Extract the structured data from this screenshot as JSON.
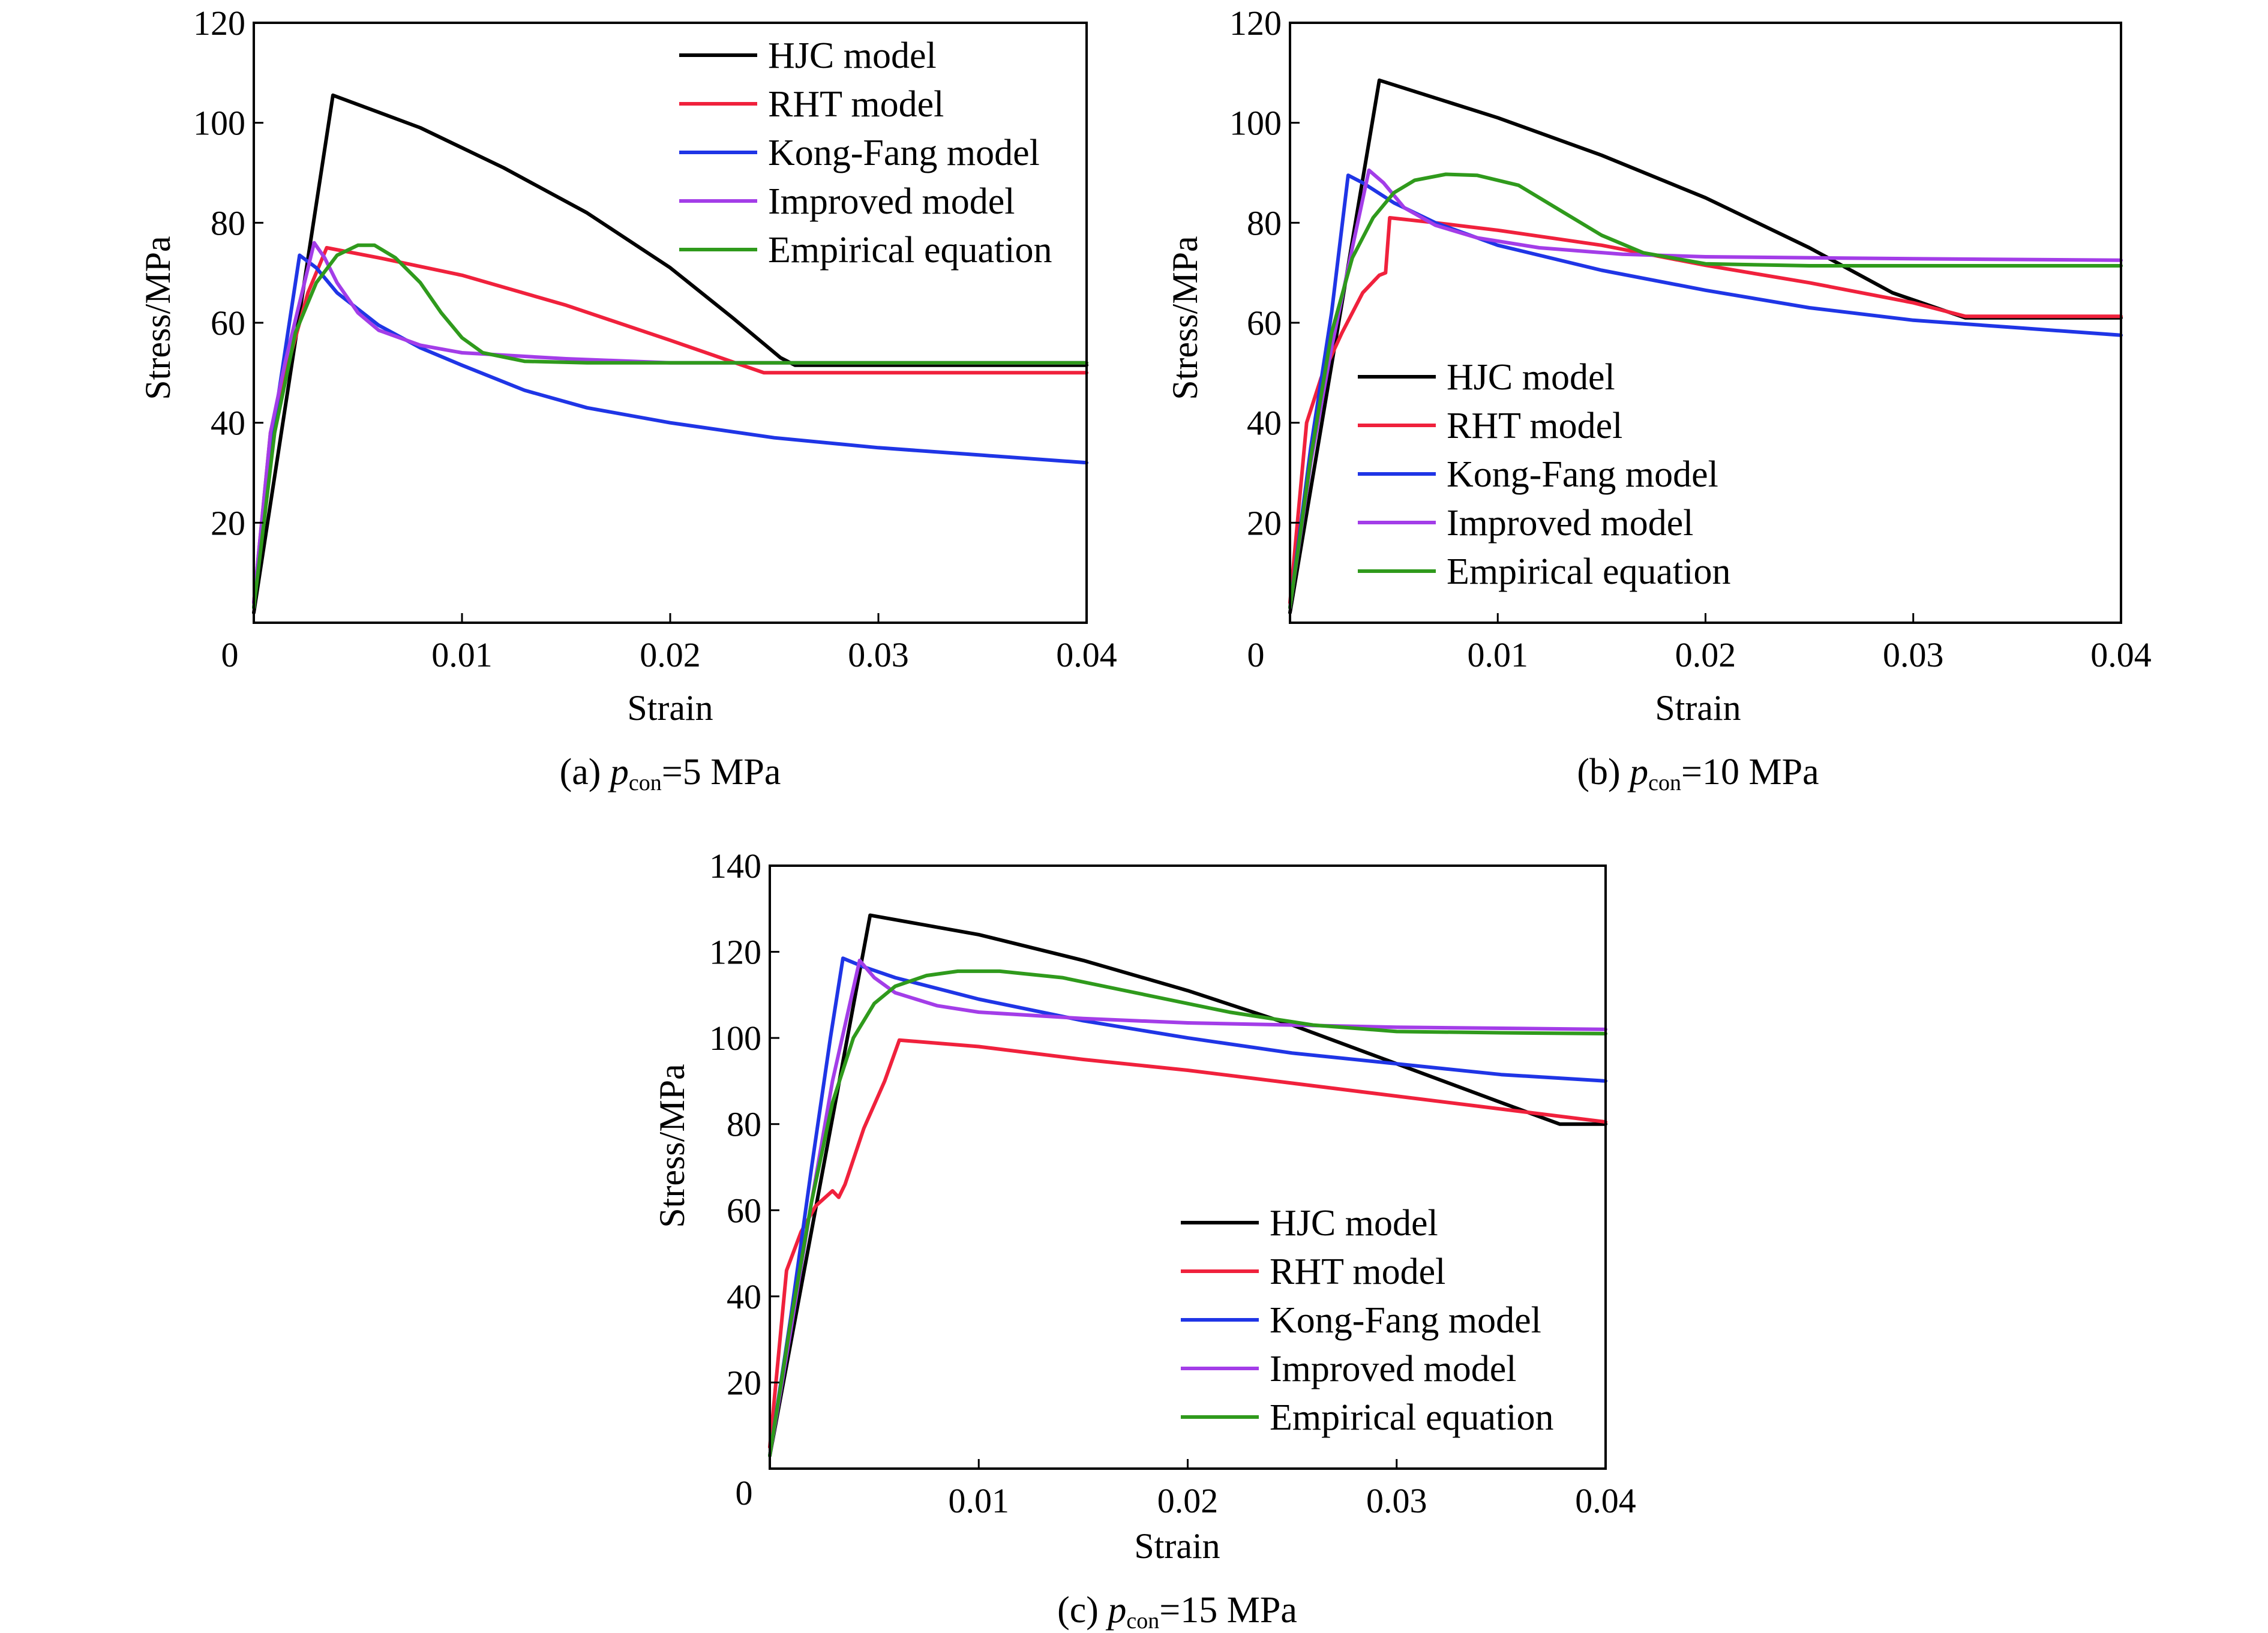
{
  "figure": {
    "panels": [
      {
        "caption": {
          "prefix": "(a) ",
          "symbol": "p",
          "subscript": "con",
          "suffix": "=5 MPa"
        }
      },
      {
        "caption": {
          "prefix": "(b) ",
          "symbol": "p",
          "subscript": "con",
          "suffix": "=10 MPa"
        }
      },
      {
        "caption": {
          "prefix": "(c) ",
          "symbol": "p",
          "subscript": "con",
          "suffix": "=15 MPa"
        }
      }
    ]
  },
  "chart_data": [
    {
      "type": "line",
      "xlabel": "Strain",
      "ylabel": "Stress/MPa",
      "xlim": [
        0,
        0.04
      ],
      "ylim": [
        0,
        120
      ],
      "xticks": [
        0,
        0.01,
        0.02,
        0.03,
        0.04
      ],
      "xtick_labels": [
        "0",
        "0.01",
        "0.02",
        "0.03",
        "0.04"
      ],
      "yticks": [
        20,
        40,
        60,
        80,
        100,
        120
      ],
      "ytick_labels": [
        "20",
        "40",
        "60",
        "80",
        "100",
        "120"
      ],
      "zero_label": "0",
      "grid": false,
      "legend_position": "top-right",
      "series": [
        {
          "name": "HJC model",
          "color": "#000000",
          "points": [
            [
              0,
              2
            ],
            [
              0.0038,
              105.5
            ],
            [
              0.008,
              99
            ],
            [
              0.012,
              91
            ],
            [
              0.016,
              82
            ],
            [
              0.02,
              71
            ],
            [
              0.023,
              61
            ],
            [
              0.0253,
              53
            ],
            [
              0.026,
              51.5
            ],
            [
              0.04,
              51.5
            ]
          ]
        },
        {
          "name": "RHT model",
          "color": "#f0213c",
          "points": [
            [
              0,
              4
            ],
            [
              0.0008,
              38
            ],
            [
              0.0014,
              48
            ],
            [
              0.002,
              57
            ],
            [
              0.0026,
              66
            ],
            [
              0.0035,
              75
            ],
            [
              0.006,
              73
            ],
            [
              0.01,
              69.5
            ],
            [
              0.015,
              63.5
            ],
            [
              0.02,
              56.5
            ],
            [
              0.0245,
              50
            ],
            [
              0.04,
              50
            ]
          ]
        },
        {
          "name": "Kong-Fang model",
          "color": "#1f35e6",
          "points": [
            [
              0,
              3
            ],
            [
              0.0008,
              35
            ],
            [
              0.0016,
              57
            ],
            [
              0.0022,
              73.5
            ],
            [
              0.003,
              71
            ],
            [
              0.004,
              66
            ],
            [
              0.006,
              59.5
            ],
            [
              0.008,
              55
            ],
            [
              0.01,
              51.5
            ],
            [
              0.013,
              46.5
            ],
            [
              0.016,
              43
            ],
            [
              0.02,
              40
            ],
            [
              0.025,
              37
            ],
            [
              0.03,
              35
            ],
            [
              0.035,
              33.5
            ],
            [
              0.04,
              32
            ]
          ]
        },
        {
          "name": "Improved model",
          "color": "#a33de8",
          "points": [
            [
              0,
              4
            ],
            [
              0.0008,
              38
            ],
            [
              0.0015,
              52
            ],
            [
              0.0022,
              64
            ],
            [
              0.0029,
              76
            ],
            [
              0.0034,
              73
            ],
            [
              0.004,
              68
            ],
            [
              0.005,
              62
            ],
            [
              0.006,
              58.5
            ],
            [
              0.008,
              55.5
            ],
            [
              0.01,
              54
            ],
            [
              0.015,
              52.8
            ],
            [
              0.02,
              52
            ],
            [
              0.04,
              52
            ]
          ]
        },
        {
          "name": "Empirical equation",
          "color": "#2f9a1c",
          "points": [
            [
              0,
              3
            ],
            [
              0.001,
              38
            ],
            [
              0.002,
              58
            ],
            [
              0.003,
              68
            ],
            [
              0.004,
              73.5
            ],
            [
              0.005,
              75.5
            ],
            [
              0.0058,
              75.5
            ],
            [
              0.0068,
              73
            ],
            [
              0.008,
              68
            ],
            [
              0.009,
              62
            ],
            [
              0.01,
              57
            ],
            [
              0.011,
              54
            ],
            [
              0.013,
              52.3
            ],
            [
              0.016,
              52
            ],
            [
              0.04,
              52
            ]
          ]
        }
      ]
    },
    {
      "type": "line",
      "xlabel": "Strain",
      "ylabel": "Stress/MPa",
      "xlim": [
        0,
        0.04
      ],
      "ylim": [
        0,
        120
      ],
      "xticks": [
        0,
        0.01,
        0.02,
        0.03,
        0.04
      ],
      "xtick_labels": [
        "0",
        "0.01",
        "0.02",
        "0.03",
        "0.04"
      ],
      "yticks": [
        20,
        40,
        60,
        80,
        100,
        120
      ],
      "ytick_labels": [
        "20",
        "40",
        "60",
        "80",
        "100",
        "120"
      ],
      "zero_label": "0",
      "grid": false,
      "legend_position": "bottom-left",
      "series": [
        {
          "name": "HJC model",
          "color": "#000000",
          "points": [
            [
              0,
              2
            ],
            [
              0.0043,
              108.5
            ],
            [
              0.01,
              101
            ],
            [
              0.015,
              93.5
            ],
            [
              0.02,
              85
            ],
            [
              0.025,
              75
            ],
            [
              0.029,
              66
            ],
            [
              0.0325,
              61
            ],
            [
              0.04,
              61
            ]
          ]
        },
        {
          "name": "RHT model",
          "color": "#f0213c",
          "points": [
            [
              0,
              4
            ],
            [
              0.0008,
              40
            ],
            [
              0.0015,
              49
            ],
            [
              0.0025,
              58
            ],
            [
              0.0035,
              66
            ],
            [
              0.0043,
              69.5
            ],
            [
              0.0046,
              70
            ],
            [
              0.0048,
              81
            ],
            [
              0.007,
              80
            ],
            [
              0.01,
              78.5
            ],
            [
              0.015,
              75.5
            ],
            [
              0.02,
              71.5
            ],
            [
              0.025,
              68
            ],
            [
              0.03,
              64
            ],
            [
              0.0325,
              61.3
            ],
            [
              0.04,
              61.3
            ]
          ]
        },
        {
          "name": "Kong-Fang model",
          "color": "#1f35e6",
          "points": [
            [
              0,
              3
            ],
            [
              0.001,
              35
            ],
            [
              0.002,
              62
            ],
            [
              0.0028,
              89.5
            ],
            [
              0.0035,
              88
            ],
            [
              0.005,
              84
            ],
            [
              0.007,
              80
            ],
            [
              0.01,
              75.5
            ],
            [
              0.015,
              70.5
            ],
            [
              0.02,
              66.5
            ],
            [
              0.025,
              63
            ],
            [
              0.03,
              60.5
            ],
            [
              0.035,
              59
            ],
            [
              0.04,
              57.5
            ]
          ]
        },
        {
          "name": "Improved model",
          "color": "#a33de8",
          "points": [
            [
              0,
              3
            ],
            [
              0.001,
              32
            ],
            [
              0.002,
              55
            ],
            [
              0.003,
              75
            ],
            [
              0.0038,
              90.5
            ],
            [
              0.0045,
              88
            ],
            [
              0.0055,
              83
            ],
            [
              0.007,
              79.5
            ],
            [
              0.009,
              77
            ],
            [
              0.012,
              75
            ],
            [
              0.016,
              73.7
            ],
            [
              0.02,
              73.2
            ],
            [
              0.03,
              72.8
            ],
            [
              0.04,
              72.5
            ]
          ]
        },
        {
          "name": "Empirical equation",
          "color": "#2f9a1c",
          "points": [
            [
              0,
              3
            ],
            [
              0.001,
              33
            ],
            [
              0.002,
              58
            ],
            [
              0.003,
              73
            ],
            [
              0.004,
              81
            ],
            [
              0.005,
              86
            ],
            [
              0.006,
              88.5
            ],
            [
              0.0075,
              89.7
            ],
            [
              0.009,
              89.5
            ],
            [
              0.011,
              87.5
            ],
            [
              0.013,
              82.5
            ],
            [
              0.015,
              77.5
            ],
            [
              0.017,
              74
            ],
            [
              0.02,
              71.8
            ],
            [
              0.025,
              71.4
            ],
            [
              0.04,
              71.4
            ]
          ]
        }
      ]
    },
    {
      "type": "line",
      "xlabel": "Strain",
      "ylabel": "Stress/MPa",
      "xlim": [
        0,
        0.04
      ],
      "ylim": [
        0,
        140
      ],
      "xticks": [
        0,
        0.01,
        0.02,
        0.03,
        0.04
      ],
      "xtick_labels": [
        "0",
        "0.01",
        "0.02",
        "0.03",
        "0.04"
      ],
      "yticks": [
        20,
        40,
        60,
        80,
        100,
        120,
        140
      ],
      "ytick_labels": [
        "20",
        "40",
        "60",
        "80",
        "100",
        "120",
        "140"
      ],
      "zero_label": "0",
      "grid": false,
      "legend_position": "bottom-right",
      "series": [
        {
          "name": "HJC model",
          "color": "#000000",
          "points": [
            [
              0,
              3
            ],
            [
              0.0048,
              128.5
            ],
            [
              0.01,
              124
            ],
            [
              0.015,
              118
            ],
            [
              0.02,
              111
            ],
            [
              0.025,
              103
            ],
            [
              0.03,
              94
            ],
            [
              0.035,
              85
            ],
            [
              0.0378,
              80
            ],
            [
              0.04,
              80
            ]
          ]
        },
        {
          "name": "RHT model",
          "color": "#f0213c",
          "points": [
            [
              0,
              5
            ],
            [
              0.0008,
              46
            ],
            [
              0.0015,
              55
            ],
            [
              0.0022,
              61
            ],
            [
              0.003,
              64.5
            ],
            [
              0.0033,
              63
            ],
            [
              0.0036,
              66
            ],
            [
              0.0045,
              79
            ],
            [
              0.0055,
              90
            ],
            [
              0.0062,
              99.5
            ],
            [
              0.01,
              98
            ],
            [
              0.015,
              95
            ],
            [
              0.02,
              92.5
            ],
            [
              0.025,
              89.5
            ],
            [
              0.03,
              86.5
            ],
            [
              0.035,
              83.5
            ],
            [
              0.04,
              80.5
            ]
          ]
        },
        {
          "name": "Kong-Fang model",
          "color": "#1f35e6",
          "points": [
            [
              0,
              3
            ],
            [
              0.001,
              35
            ],
            [
              0.002,
              70
            ],
            [
              0.0029,
              100
            ],
            [
              0.0035,
              118.5
            ],
            [
              0.0045,
              116.5
            ],
            [
              0.006,
              114
            ],
            [
              0.01,
              109
            ],
            [
              0.015,
              104
            ],
            [
              0.02,
              100
            ],
            [
              0.025,
              96.5
            ],
            [
              0.03,
              94
            ],
            [
              0.035,
              91.5
            ],
            [
              0.04,
              90
            ]
          ]
        },
        {
          "name": "Improved model",
          "color": "#a33de8",
          "points": [
            [
              0,
              3
            ],
            [
              0.001,
              32
            ],
            [
              0.002,
              62
            ],
            [
              0.003,
              90
            ],
            [
              0.0043,
              118
            ],
            [
              0.005,
              114
            ],
            [
              0.006,
              110.5
            ],
            [
              0.008,
              107.5
            ],
            [
              0.01,
              106
            ],
            [
              0.015,
              104.5
            ],
            [
              0.02,
              103.5
            ],
            [
              0.03,
              102.5
            ],
            [
              0.04,
              102
            ]
          ]
        },
        {
          "name": "Empirical equation",
          "color": "#2f9a1c",
          "points": [
            [
              0,
              3
            ],
            [
              0.001,
              34
            ],
            [
              0.002,
              62
            ],
            [
              0.003,
              85
            ],
            [
              0.004,
              100
            ],
            [
              0.005,
              108
            ],
            [
              0.006,
              112
            ],
            [
              0.0075,
              114.5
            ],
            [
              0.009,
              115.5
            ],
            [
              0.011,
              115.5
            ],
            [
              0.014,
              114
            ],
            [
              0.018,
              110
            ],
            [
              0.022,
              106
            ],
            [
              0.026,
              103
            ],
            [
              0.03,
              101.5
            ],
            [
              0.035,
              101.2
            ],
            [
              0.04,
              101
            ]
          ]
        }
      ]
    }
  ]
}
